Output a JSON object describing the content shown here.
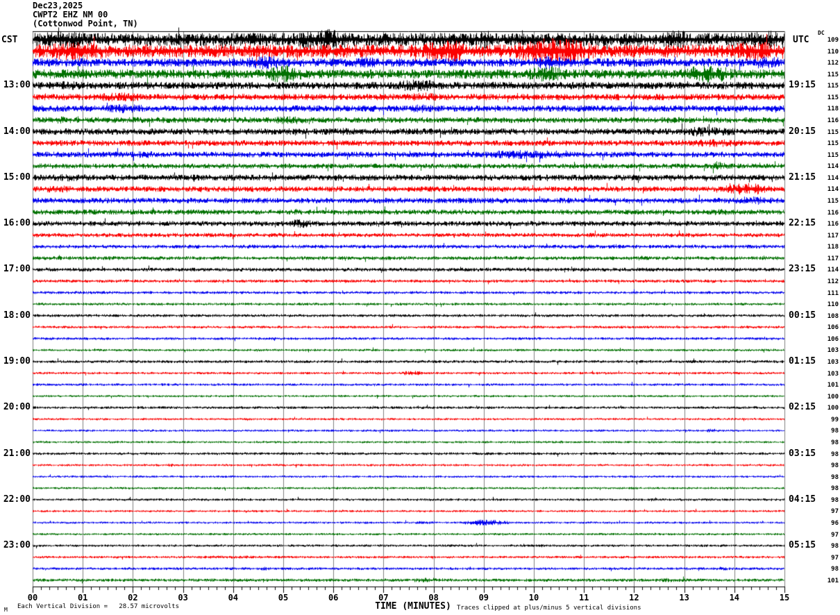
{
  "header": {
    "date": "Dec23,2025",
    "station": "CWPT2 EHZ NM 00",
    "location": "(Cottonwod Point, TN)"
  },
  "left_timezone": "CST",
  "right_timezone": "UTC",
  "dc_label": "DC",
  "x_axis": {
    "tick_labels": [
      "00",
      "01",
      "02",
      "03",
      "04",
      "05",
      "06",
      "07",
      "08",
      "09",
      "10",
      "11",
      "12",
      "13",
      "14",
      "15"
    ],
    "caption": "TIME (MINUTES)"
  },
  "footer": {
    "left": "Each Vertical Division =   28.57 microvolts",
    "right": "Traces clipped at plus/minus 5 vertical divisions",
    "mark": "M"
  },
  "colors": {
    "black": "#000000",
    "red": "#fb0000",
    "blue": "#0000ee",
    "green": "#007000",
    "grid": "#7f7f7f",
    "border": "#000000"
  },
  "chart_data": {
    "type": "line",
    "subtype": "helicorder-seismogram",
    "title": "CWPT2 EHZ NM 00 Dec23,2025 (Cottonwod Point, TN)",
    "xlabel": "TIME (MINUTES)",
    "x_range_minutes": [
      0,
      15
    ],
    "minutes_per_line": 15,
    "grid": true,
    "clip_divisions": 5,
    "microvolts_per_division": 28.57,
    "lines": [
      {
        "color": "black",
        "dc": 109,
        "amp": 6.0,
        "bursts": [
          [
            0,
            1.2,
            1.3
          ],
          [
            5.2,
            6.4,
            1.6
          ],
          [
            8.7,
            9.3,
            1.4
          ],
          [
            12.5,
            13.2,
            1.5
          ],
          [
            14.2,
            15,
            1.4
          ]
        ]
      },
      {
        "color": "red",
        "dc": 110,
        "amp": 6.0,
        "bursts": [
          [
            0.2,
            1.6,
            1.5
          ],
          [
            7.8,
            8.7,
            1.9
          ],
          [
            9.6,
            11.2,
            2.0
          ],
          [
            13.8,
            15,
            1.5
          ]
        ]
      },
      {
        "color": "blue",
        "dc": 112,
        "amp": 3.8,
        "bursts": [
          [
            4.2,
            5.1,
            1.7
          ],
          [
            6.3,
            7.0,
            1.4
          ],
          [
            9.9,
            10.7,
            1.6
          ],
          [
            14.4,
            15,
            1.5
          ]
        ]
      },
      {
        "color": "green",
        "dc": 115,
        "amp": 4.2,
        "bursts": [
          [
            4.6,
            5.4,
            1.9
          ],
          [
            9.8,
            10.7,
            1.7
          ],
          [
            12.9,
            14.0,
            1.9
          ]
        ]
      },
      {
        "color": "black",
        "dc": 115,
        "amp": 3.4,
        "bursts": [
          [
            0.3,
            1.1,
            1.2
          ],
          [
            7.2,
            8.2,
            1.7
          ]
        ],
        "label_left": "13:00",
        "label_right": "19:15"
      },
      {
        "color": "red",
        "dc": 115,
        "amp": 2.9,
        "bursts": [
          [
            1.2,
            2.3,
            1.5
          ],
          [
            7.4,
            8.3,
            1.4
          ]
        ]
      },
      {
        "color": "blue",
        "dc": 118,
        "amp": 2.9,
        "bursts": [
          [
            1.3,
            2.4,
            1.5
          ],
          [
            7.4,
            8.1,
            1.3
          ]
        ]
      },
      {
        "color": "green",
        "dc": 116,
        "amp": 2.7,
        "bursts": [
          [
            0.3,
            0.9,
            1.2
          ],
          [
            4.7,
            5.6,
            1.4
          ]
        ]
      },
      {
        "color": "black",
        "dc": 115,
        "amp": 2.9,
        "bursts": [
          [
            5.9,
            6.6,
            1.2
          ],
          [
            12.8,
            14.1,
            1.6
          ]
        ],
        "label_left": "14:00",
        "label_right": "20:15"
      },
      {
        "color": "red",
        "dc": 115,
        "amp": 2.6,
        "bursts": [
          [
            12.9,
            14.3,
            1.4
          ]
        ]
      },
      {
        "color": "blue",
        "dc": 115,
        "amp": 2.6,
        "bursts": [
          [
            2.0,
            2.5,
            1.3
          ],
          [
            8.8,
            10.9,
            1.6
          ]
        ]
      },
      {
        "color": "green",
        "dc": 114,
        "amp": 2.3,
        "bursts": [
          [
            13.5,
            13.9,
            1.9
          ]
        ]
      },
      {
        "color": "black",
        "dc": 114,
        "amp": 2.7,
        "bursts": [
          [
            0.2,
            1.3,
            1.3
          ],
          [
            5.7,
            6.4,
            1.2
          ]
        ],
        "label_left": "15:00",
        "label_right": "21:15"
      },
      {
        "color": "red",
        "dc": 114,
        "amp": 2.5,
        "bursts": [
          [
            0.0,
            1.0,
            1.3
          ],
          [
            13.8,
            14.7,
            2.2
          ]
        ]
      },
      {
        "color": "blue",
        "dc": 115,
        "amp": 2.5,
        "bursts": [
          [
            13.9,
            14.9,
            1.5
          ]
        ]
      },
      {
        "color": "green",
        "dc": 116,
        "amp": 2.3,
        "bursts": [
          [
            13.4,
            14.0,
            1.3
          ]
        ]
      },
      {
        "color": "black",
        "dc": 116,
        "amp": 2.3,
        "bursts": [
          [
            5.0,
            5.7,
            1.7
          ]
        ],
        "label_left": "16:00",
        "label_right": "22:15"
      },
      {
        "color": "red",
        "dc": 117,
        "amp": 1.9,
        "bursts": []
      },
      {
        "color": "blue",
        "dc": 118,
        "amp": 1.7,
        "bursts": [
          [
            11.5,
            11.8,
            1.3
          ]
        ]
      },
      {
        "color": "green",
        "dc": 117,
        "amp": 1.7,
        "bursts": [
          [
            11.9,
            12.3,
            1.3
          ]
        ]
      },
      {
        "color": "black",
        "dc": 114,
        "amp": 1.7,
        "bursts": [],
        "label_left": "17:00",
        "label_right": "23:15"
      },
      {
        "color": "red",
        "dc": 112,
        "amp": 1.4,
        "bursts": []
      },
      {
        "color": "blue",
        "dc": 111,
        "amp": 1.3,
        "bursts": []
      },
      {
        "color": "green",
        "dc": 110,
        "amp": 1.2,
        "bursts": []
      },
      {
        "color": "black",
        "dc": 108,
        "amp": 1.3,
        "bursts": [],
        "label_left": "18:00",
        "label_right": "00:15"
      },
      {
        "color": "red",
        "dc": 106,
        "amp": 1.2,
        "bursts": []
      },
      {
        "color": "blue",
        "dc": 106,
        "amp": 1.2,
        "bursts": []
      },
      {
        "color": "green",
        "dc": 103,
        "amp": 1.1,
        "bursts": []
      },
      {
        "color": "black",
        "dc": 103,
        "amp": 1.3,
        "bursts": [],
        "label_left": "19:00",
        "label_right": "01:15"
      },
      {
        "color": "red",
        "dc": 103,
        "amp": 1.1,
        "bursts": [
          [
            7.3,
            7.8,
            2.0
          ]
        ]
      },
      {
        "color": "blue",
        "dc": 101,
        "amp": 1.1,
        "bursts": []
      },
      {
        "color": "green",
        "dc": 100,
        "amp": 1.0,
        "bursts": []
      },
      {
        "color": "black",
        "dc": 100,
        "amp": 1.2,
        "bursts": [],
        "label_left": "20:00",
        "label_right": "02:15"
      },
      {
        "color": "red",
        "dc": 99,
        "amp": 1.0,
        "bursts": []
      },
      {
        "color": "blue",
        "dc": 98,
        "amp": 1.0,
        "bursts": [
          [
            13.4,
            13.7,
            1.8
          ]
        ]
      },
      {
        "color": "green",
        "dc": 98,
        "amp": 1.0,
        "bursts": []
      },
      {
        "color": "black",
        "dc": 98,
        "amp": 1.2,
        "bursts": [],
        "label_left": "21:00",
        "label_right": "03:15"
      },
      {
        "color": "red",
        "dc": 98,
        "amp": 1.0,
        "bursts": [
          [
            2.6,
            2.9,
            1.5
          ]
        ]
      },
      {
        "color": "blue",
        "dc": 98,
        "amp": 1.0,
        "bursts": []
      },
      {
        "color": "green",
        "dc": 98,
        "amp": 1.0,
        "bursts": []
      },
      {
        "color": "black",
        "dc": 98,
        "amp": 1.1,
        "bursts": [],
        "label_left": "22:00",
        "label_right": "04:15"
      },
      {
        "color": "red",
        "dc": 97,
        "amp": 1.0,
        "bursts": []
      },
      {
        "color": "blue",
        "dc": 96,
        "amp": 1.0,
        "bursts": [
          [
            7.5,
            8.1,
            1.4
          ],
          [
            8.6,
            9.5,
            2.8
          ]
        ]
      },
      {
        "color": "green",
        "dc": 97,
        "amp": 1.0,
        "bursts": []
      },
      {
        "color": "black",
        "dc": 98,
        "amp": 1.1,
        "bursts": [],
        "label_left": "23:00",
        "label_right": "05:15"
      },
      {
        "color": "red",
        "dc": 97,
        "amp": 1.1,
        "bursts": [
          [
            2.5,
            5.5,
            1.3
          ]
        ]
      },
      {
        "color": "blue",
        "dc": 98,
        "amp": 1.2,
        "bursts": [
          [
            4.5,
            4.8,
            1.6
          ],
          [
            13.6,
            13.9,
            1.5
          ]
        ]
      },
      {
        "color": "green",
        "dc": 101,
        "amp": 1.4,
        "bursts": [
          [
            7.5,
            8.2,
            1.6
          ],
          [
            12.3,
            13.3,
            1.4
          ]
        ]
      }
    ]
  }
}
